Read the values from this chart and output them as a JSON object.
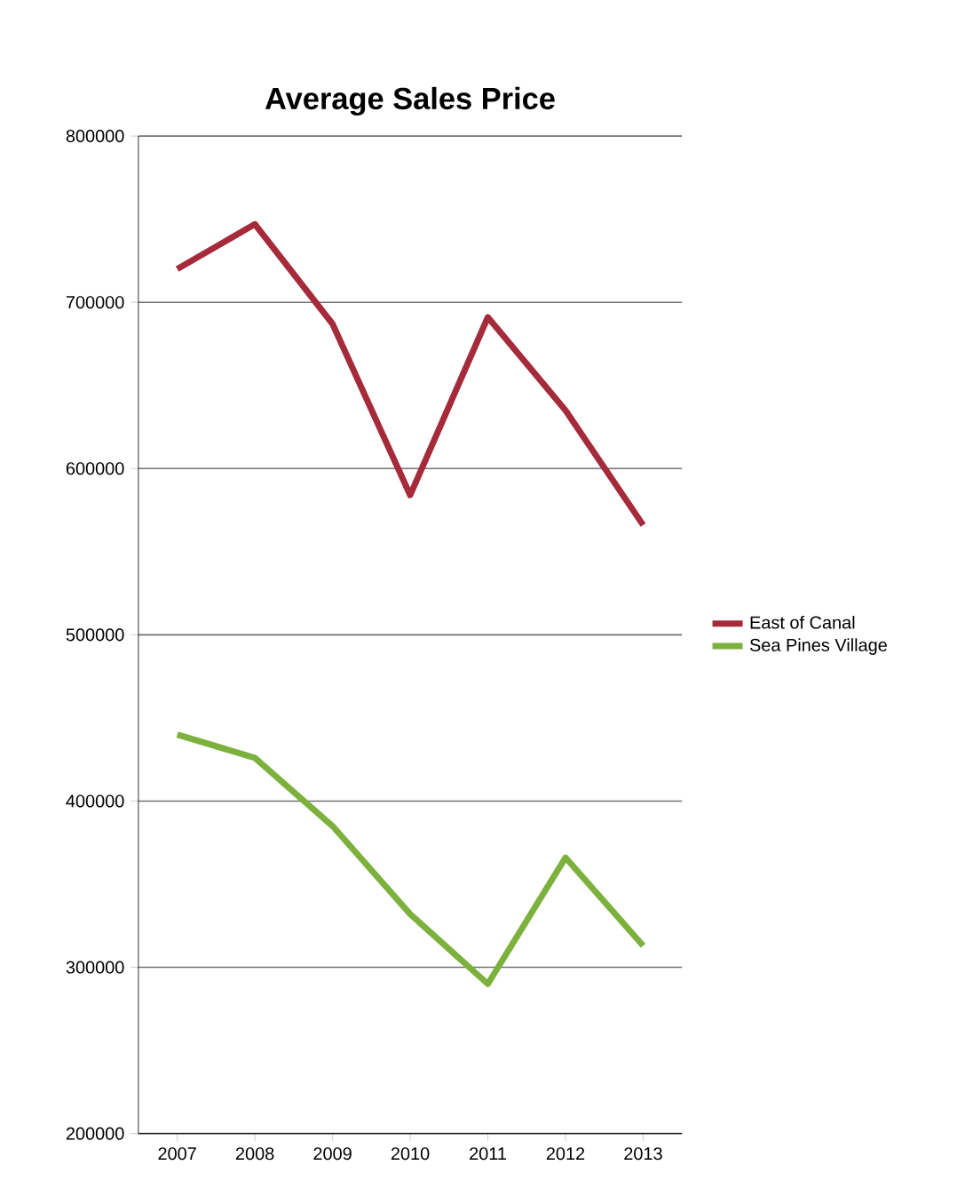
{
  "chart_data": {
    "type": "line",
    "title": "Average Sales Price",
    "categories": [
      "2007",
      "2008",
      "2009",
      "2010",
      "2011",
      "2012",
      "2013"
    ],
    "series": [
      {
        "name": "East of Canal",
        "color": "#a52a3a",
        "values": [
          720000,
          747000,
          687000,
          584000,
          691000,
          635000,
          566000
        ]
      },
      {
        "name": "Sea Pines Village",
        "color": "#7bb13c",
        "values": [
          440000,
          426000,
          385000,
          332000,
          290000,
          366000,
          313000
        ]
      }
    ],
    "ylim": [
      200000,
      800000
    ],
    "yticks": [
      200000,
      300000,
      400000,
      500000,
      600000,
      700000,
      800000
    ],
    "grid": "y",
    "legend": "right",
    "marker": "none",
    "line_style": "solid"
  }
}
